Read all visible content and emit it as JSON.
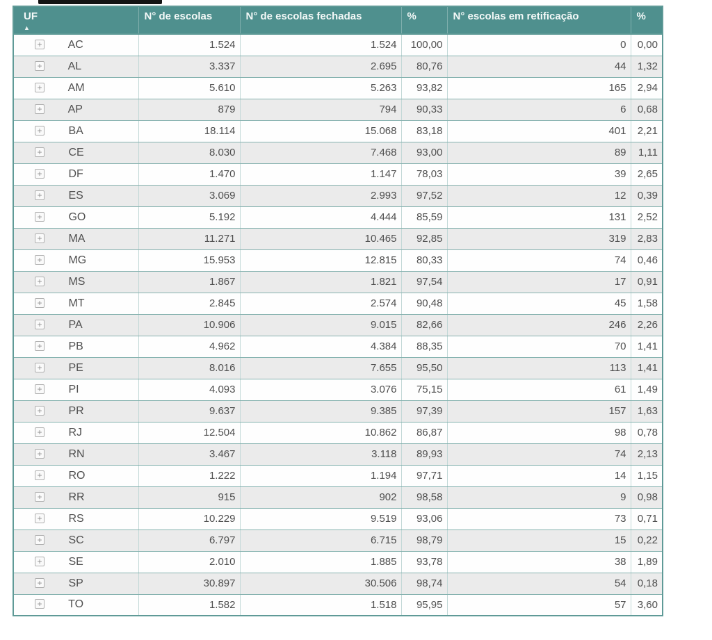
{
  "colors": {
    "header_teal": "#4f908e",
    "grid_teal": "#84b1ae",
    "stripe_gray": "#ebebeb",
    "body_text": "#4f4f4f"
  },
  "table": {
    "columns": [
      {
        "label": "UF",
        "sort": "asc"
      },
      {
        "label": "N° de escolas"
      },
      {
        "label": "N° de escolas fechadas"
      },
      {
        "label": "%"
      },
      {
        "label": "N° escolas em retificação"
      },
      {
        "label": "%"
      }
    ],
    "expand_icon_glyph": "+",
    "sort_icon_glyph": "▲",
    "rows": [
      {
        "uf": "AC",
        "escolas": "1.524",
        "fechadas": "1.524",
        "pct_fechadas": "100,00",
        "retificacao": "0",
        "pct_retificacao": "0,00"
      },
      {
        "uf": "AL",
        "escolas": "3.337",
        "fechadas": "2.695",
        "pct_fechadas": "80,76",
        "retificacao": "44",
        "pct_retificacao": "1,32"
      },
      {
        "uf": "AM",
        "escolas": "5.610",
        "fechadas": "5.263",
        "pct_fechadas": "93,82",
        "retificacao": "165",
        "pct_retificacao": "2,94"
      },
      {
        "uf": "AP",
        "escolas": "879",
        "fechadas": "794",
        "pct_fechadas": "90,33",
        "retificacao": "6",
        "pct_retificacao": "0,68"
      },
      {
        "uf": "BA",
        "escolas": "18.114",
        "fechadas": "15.068",
        "pct_fechadas": "83,18",
        "retificacao": "401",
        "pct_retificacao": "2,21"
      },
      {
        "uf": "CE",
        "escolas": "8.030",
        "fechadas": "7.468",
        "pct_fechadas": "93,00",
        "retificacao": "89",
        "pct_retificacao": "1,11"
      },
      {
        "uf": "DF",
        "escolas": "1.470",
        "fechadas": "1.147",
        "pct_fechadas": "78,03",
        "retificacao": "39",
        "pct_retificacao": "2,65"
      },
      {
        "uf": "ES",
        "escolas": "3.069",
        "fechadas": "2.993",
        "pct_fechadas": "97,52",
        "retificacao": "12",
        "pct_retificacao": "0,39"
      },
      {
        "uf": "GO",
        "escolas": "5.192",
        "fechadas": "4.444",
        "pct_fechadas": "85,59",
        "retificacao": "131",
        "pct_retificacao": "2,52"
      },
      {
        "uf": "MA",
        "escolas": "11.271",
        "fechadas": "10.465",
        "pct_fechadas": "92,85",
        "retificacao": "319",
        "pct_retificacao": "2,83"
      },
      {
        "uf": "MG",
        "escolas": "15.953",
        "fechadas": "12.815",
        "pct_fechadas": "80,33",
        "retificacao": "74",
        "pct_retificacao": "0,46"
      },
      {
        "uf": "MS",
        "escolas": "1.867",
        "fechadas": "1.821",
        "pct_fechadas": "97,54",
        "retificacao": "17",
        "pct_retificacao": "0,91"
      },
      {
        "uf": "MT",
        "escolas": "2.845",
        "fechadas": "2.574",
        "pct_fechadas": "90,48",
        "retificacao": "45",
        "pct_retificacao": "1,58"
      },
      {
        "uf": "PA",
        "escolas": "10.906",
        "fechadas": "9.015",
        "pct_fechadas": "82,66",
        "retificacao": "246",
        "pct_retificacao": "2,26"
      },
      {
        "uf": "PB",
        "escolas": "4.962",
        "fechadas": "4.384",
        "pct_fechadas": "88,35",
        "retificacao": "70",
        "pct_retificacao": "1,41"
      },
      {
        "uf": "PE",
        "escolas": "8.016",
        "fechadas": "7.655",
        "pct_fechadas": "95,50",
        "retificacao": "113",
        "pct_retificacao": "1,41"
      },
      {
        "uf": "PI",
        "escolas": "4.093",
        "fechadas": "3.076",
        "pct_fechadas": "75,15",
        "retificacao": "61",
        "pct_retificacao": "1,49"
      },
      {
        "uf": "PR",
        "escolas": "9.637",
        "fechadas": "9.385",
        "pct_fechadas": "97,39",
        "retificacao": "157",
        "pct_retificacao": "1,63"
      },
      {
        "uf": "RJ",
        "escolas": "12.504",
        "fechadas": "10.862",
        "pct_fechadas": "86,87",
        "retificacao": "98",
        "pct_retificacao": "0,78"
      },
      {
        "uf": "RN",
        "escolas": "3.467",
        "fechadas": "3.118",
        "pct_fechadas": "89,93",
        "retificacao": "74",
        "pct_retificacao": "2,13"
      },
      {
        "uf": "RO",
        "escolas": "1.222",
        "fechadas": "1.194",
        "pct_fechadas": "97,71",
        "retificacao": "14",
        "pct_retificacao": "1,15"
      },
      {
        "uf": "RR",
        "escolas": "915",
        "fechadas": "902",
        "pct_fechadas": "98,58",
        "retificacao": "9",
        "pct_retificacao": "0,98"
      },
      {
        "uf": "RS",
        "escolas": "10.229",
        "fechadas": "9.519",
        "pct_fechadas": "93,06",
        "retificacao": "73",
        "pct_retificacao": "0,71"
      },
      {
        "uf": "SC",
        "escolas": "6.797",
        "fechadas": "6.715",
        "pct_fechadas": "98,79",
        "retificacao": "15",
        "pct_retificacao": "0,22"
      },
      {
        "uf": "SE",
        "escolas": "2.010",
        "fechadas": "1.885",
        "pct_fechadas": "93,78",
        "retificacao": "38",
        "pct_retificacao": "1,89"
      },
      {
        "uf": "SP",
        "escolas": "30.897",
        "fechadas": "30.506",
        "pct_fechadas": "98,74",
        "retificacao": "54",
        "pct_retificacao": "0,18"
      },
      {
        "uf": "TO",
        "escolas": "1.582",
        "fechadas": "1.518",
        "pct_fechadas": "95,95",
        "retificacao": "57",
        "pct_retificacao": "3,60"
      }
    ]
  }
}
